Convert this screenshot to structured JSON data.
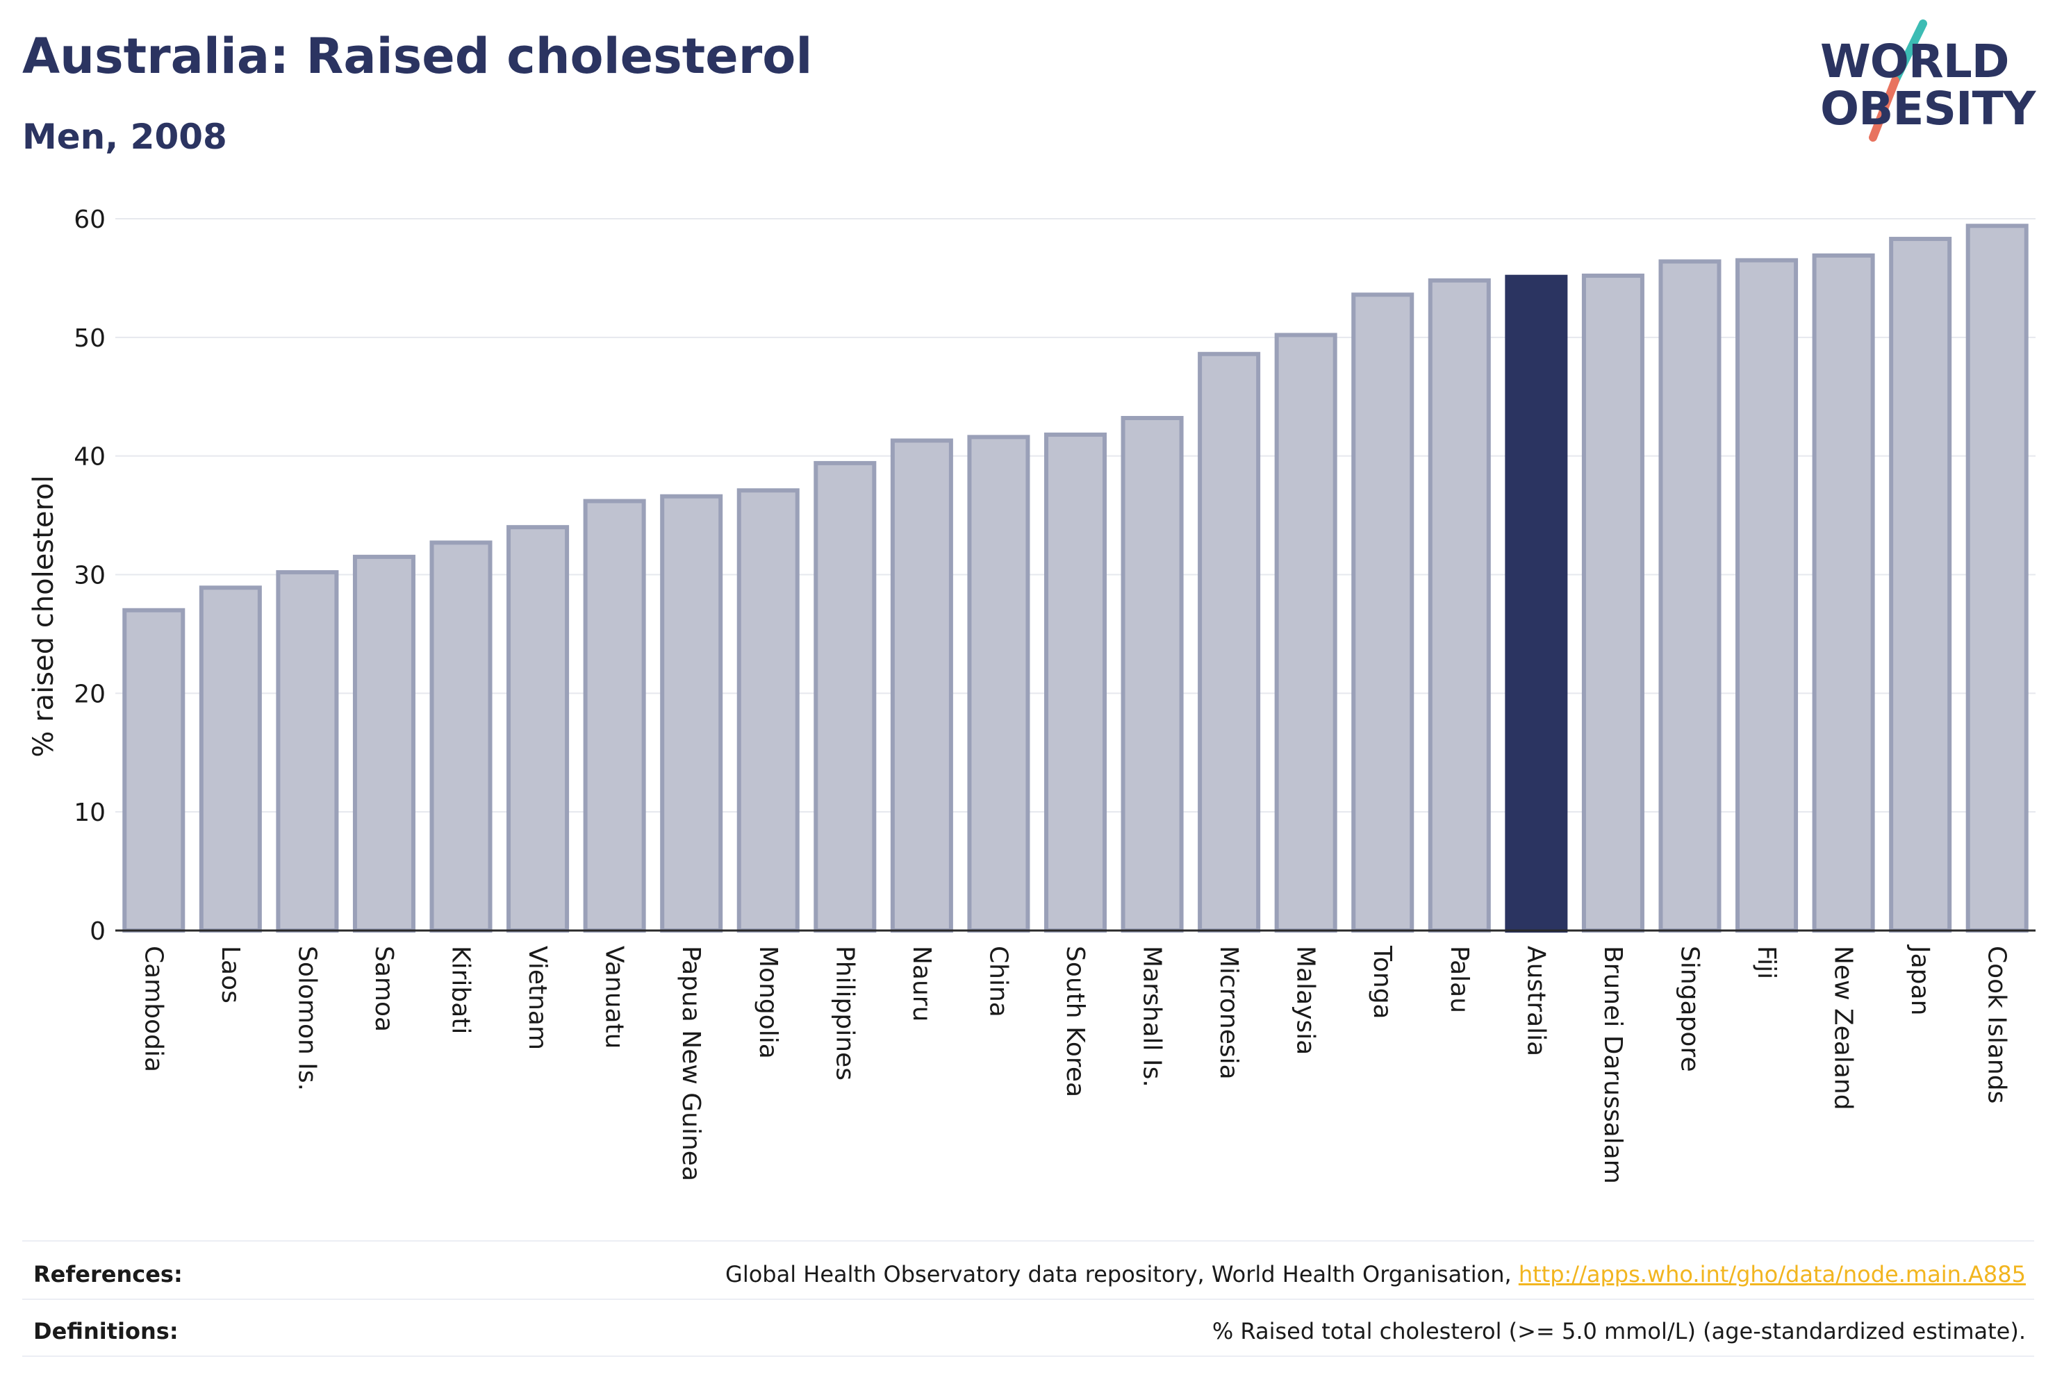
{
  "header": {
    "title": "Australia: Raised cholesterol",
    "subtitle": "Men, 2008"
  },
  "logo": {
    "line1": "WORLD",
    "line2": "OBESITY",
    "slash_colors": [
      "#3cbcb4",
      "#e8735f"
    ]
  },
  "colors": {
    "highlight": "#2b3461",
    "bar_fill": "#bfc2d0",
    "bar_stroke": "#9aa0b8",
    "title": "#2b3461",
    "link": "#f2b51f"
  },
  "chart_data": {
    "type": "bar",
    "title": "Australia: Raised cholesterol",
    "subtitle": "Men, 2008",
    "ylabel": "% raised cholesterol",
    "xlabel": "",
    "ylim": [
      0,
      60
    ],
    "yticks": [
      0,
      10,
      20,
      30,
      40,
      50,
      60
    ],
    "grid": true,
    "highlight": "Australia",
    "categories": [
      "Cambodia",
      "Laos",
      "Solomon Is.",
      "Samoa",
      "Kiribati",
      "Vietnam",
      "Vanuatu",
      "Papua New Guinea",
      "Mongolia",
      "Philippines",
      "Nauru",
      "China",
      "South Korea",
      "Marshall Is.",
      "Micronesia",
      "Malaysia",
      "Tonga",
      "Palau",
      "Australia",
      "Brunei Darussalam",
      "Singapore",
      "Fiji",
      "New Zealand",
      "Japan",
      "Cook Islands"
    ],
    "values": [
      27.0,
      28.9,
      30.2,
      31.5,
      32.7,
      34.0,
      36.2,
      36.6,
      37.1,
      39.4,
      41.3,
      41.6,
      41.8,
      43.2,
      48.6,
      50.2,
      53.6,
      54.8,
      55.1,
      55.2,
      56.4,
      56.5,
      56.9,
      58.3,
      59.4
    ]
  },
  "footer": {
    "references_label": "References:",
    "references_text": "Global Health Observatory data repository, World Health Organisation, ",
    "references_link": "http://apps.who.int/gho/data/node.main.A885",
    "definitions_label": "Definitions:",
    "definitions_text": "% Raised total cholesterol (>= 5.0 mmol/L) (age-standardized estimate)."
  }
}
